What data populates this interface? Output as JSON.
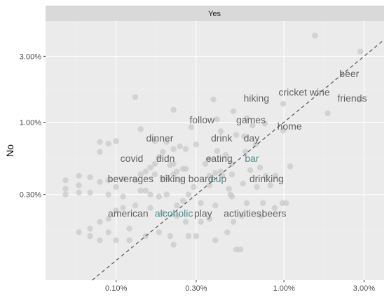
{
  "chart_data": {
    "type": "scatter",
    "facet_label": "Yes",
    "xlabel": "",
    "ylabel": "No",
    "x_scale": "log10",
    "y_scale": "log10",
    "xlim": [
      0.00038,
      0.0395
    ],
    "ylim": [
      0.00072,
      0.054
    ],
    "x_ticks": [
      {
        "value": 0.001,
        "label": "0.10%"
      },
      {
        "value": 0.003,
        "label": "0.30%"
      },
      {
        "value": 0.01,
        "label": "1.00%"
      },
      {
        "value": 0.03,
        "label": "3.00%"
      }
    ],
    "y_ticks": [
      {
        "value": 0.003,
        "label": "0.30%"
      },
      {
        "value": 0.01,
        "label": "1.00%"
      },
      {
        "value": 0.03,
        "label": "3.00%"
      }
    ],
    "reference_line": "y = x",
    "grid": true,
    "point_color": "#c9c9c9",
    "default_word_color": "#636363",
    "highlight_word_color": "#4a8c8c",
    "words": [
      {
        "text": "beer",
        "x": 0.0245,
        "y": 0.0225,
        "highlight": false
      },
      {
        "text": "cricket wine",
        "x": 0.0132,
        "y": 0.0165,
        "highlight": false
      },
      {
        "text": "friends",
        "x": 0.0255,
        "y": 0.015,
        "highlight": false
      },
      {
        "text": "hiking",
        "x": 0.00685,
        "y": 0.015,
        "highlight": false
      },
      {
        "text": "home",
        "x": 0.0108,
        "y": 0.0094,
        "highlight": false
      },
      {
        "text": "follow",
        "x": 0.00325,
        "y": 0.0104,
        "highlight": false
      },
      {
        "text": "games",
        "x": 0.00636,
        "y": 0.0104,
        "highlight": false
      },
      {
        "text": "dinner",
        "x": 0.00182,
        "y": 0.0077,
        "highlight": false
      },
      {
        "text": "drink",
        "x": 0.00425,
        "y": 0.0077,
        "highlight": false
      },
      {
        "text": "day",
        "x": 0.00641,
        "y": 0.0077,
        "highlight": false
      },
      {
        "text": "covid",
        "x": 0.00124,
        "y": 0.0055,
        "highlight": false
      },
      {
        "text": "didn",
        "x": 0.00197,
        "y": 0.0055,
        "highlight": false
      },
      {
        "text": "eating",
        "x": 0.00411,
        "y": 0.0055,
        "highlight": false
      },
      {
        "text": "bar",
        "x": 0.00644,
        "y": 0.0055,
        "highlight": true
      },
      {
        "text": "beverages",
        "x": 0.00122,
        "y": 0.0039,
        "highlight": false
      },
      {
        "text": "biking",
        "x": 0.00218,
        "y": 0.0039,
        "highlight": false
      },
      {
        "text": "board",
        "x": 0.0032,
        "y": 0.0039,
        "highlight": false
      },
      {
        "text": "cup",
        "x": 0.00408,
        "y": 0.0039,
        "highlight": true
      },
      {
        "text": "drinking",
        "x": 0.00788,
        "y": 0.0039,
        "highlight": false
      },
      {
        "text": "american",
        "x": 0.00118,
        "y": 0.0022,
        "highlight": false
      },
      {
        "text": "alcoholic",
        "x": 0.00221,
        "y": 0.0022,
        "highlight": true
      },
      {
        "text": "play",
        "x": 0.0033,
        "y": 0.0022,
        "highlight": false
      },
      {
        "text": "activities",
        "x": 0.00566,
        "y": 0.0022,
        "highlight": false
      },
      {
        "text": "beers",
        "x": 0.00873,
        "y": 0.0022,
        "highlight": false
      }
    ],
    "points": [
      [
        0.0285,
        0.0325
      ],
      [
        0.0153,
        0.0424
      ],
      [
        0.0281,
        0.0146
      ],
      [
        0.0182,
        0.0116
      ],
      [
        0.0099,
        0.0136
      ],
      [
        0.0099,
        0.0087
      ],
      [
        0.0077,
        0.0098
      ],
      [
        0.006,
        0.0107
      ],
      [
        0.0065,
        0.0095
      ],
      [
        0.005,
        0.012
      ],
      [
        0.0038,
        0.0146
      ],
      [
        0.004,
        0.0105
      ],
      [
        0.0042,
        0.0086
      ],
      [
        0.0052,
        0.0081
      ],
      [
        0.0058,
        0.0079
      ],
      [
        0.0068,
        0.0069
      ],
      [
        0.0059,
        0.0061
      ],
      [
        0.0045,
        0.0058
      ],
      [
        0.004,
        0.0062
      ],
      [
        0.0036,
        0.0054
      ],
      [
        0.0049,
        0.005
      ],
      [
        0.0063,
        0.0045
      ],
      [
        0.0072,
        0.0047
      ],
      [
        0.0078,
        0.0041
      ],
      [
        0.0089,
        0.0041
      ],
      [
        0.0109,
        0.0048
      ],
      [
        0.0083,
        0.0035
      ],
      [
        0.0069,
        0.0034
      ],
      [
        0.0057,
        0.0036
      ],
      [
        0.0047,
        0.0033
      ],
      [
        0.0036,
        0.0035
      ],
      [
        0.0029,
        0.0034
      ],
      [
        0.0024,
        0.0038
      ],
      [
        0.0022,
        0.0042
      ],
      [
        0.0021,
        0.0049
      ],
      [
        0.0022,
        0.005
      ],
      [
        0.0018,
        0.0056
      ],
      [
        0.0017,
        0.005
      ],
      [
        0.0016,
        0.0047
      ],
      [
        0.0015,
        0.0044
      ],
      [
        0.0014,
        0.0042
      ],
      [
        0.0013,
        0.0038
      ],
      [
        0.0011,
        0.0039
      ],
      [
        0.001,
        0.0034
      ],
      [
        0.0009,
        0.0038
      ],
      [
        0.0008,
        0.0037
      ],
      [
        0.0007,
        0.004
      ],
      [
        0.0006,
        0.0041
      ],
      [
        0.0005,
        0.0038
      ],
      [
        0.0005,
        0.0033
      ],
      [
        0.0005,
        0.003
      ],
      [
        0.0006,
        0.0031
      ],
      [
        0.0007,
        0.0031
      ],
      [
        0.0009,
        0.003
      ],
      [
        0.0011,
        0.0029
      ],
      [
        0.0014,
        0.0032
      ],
      [
        0.0015,
        0.0032
      ],
      [
        0.0016,
        0.003
      ],
      [
        0.0018,
        0.0029
      ],
      [
        0.002,
        0.003
      ],
      [
        0.0023,
        0.0025
      ],
      [
        0.0025,
        0.0027
      ],
      [
        0.0032,
        0.0026
      ],
      [
        0.0039,
        0.0025
      ],
      [
        0.0049,
        0.0029
      ],
      [
        0.006,
        0.0026
      ],
      [
        0.0075,
        0.0026
      ],
      [
        0.0088,
        0.0024
      ],
      [
        0.0098,
        0.0026
      ],
      [
        0.0103,
        0.0026
      ],
      [
        0.0073,
        0.0021
      ],
      [
        0.0056,
        0.0021
      ],
      [
        0.005,
        0.0019
      ],
      [
        0.0036,
        0.002
      ],
      [
        0.0032,
        0.0019
      ],
      [
        0.0026,
        0.0019
      ],
      [
        0.0023,
        0.0021
      ],
      [
        0.0019,
        0.0022
      ],
      [
        0.0016,
        0.0024
      ],
      [
        0.0013,
        0.0025
      ],
      [
        0.0011,
        0.0024
      ],
      [
        0.001,
        0.0023
      ],
      [
        0.0009,
        0.002
      ],
      [
        0.0008,
        0.0019
      ],
      [
        0.0007,
        0.0017
      ],
      [
        0.0007,
        0.0015
      ],
      [
        0.0008,
        0.0014
      ],
      [
        0.001,
        0.0014
      ],
      [
        0.0012,
        0.0014
      ],
      [
        0.0015,
        0.0015
      ],
      [
        0.0018,
        0.0016
      ],
      [
        0.0021,
        0.0015
      ],
      [
        0.0022,
        0.0013
      ],
      [
        0.0027,
        0.0015
      ],
      [
        0.0046,
        0.0016
      ],
      [
        0.0052,
        0.0012
      ],
      [
        0.0055,
        0.0012
      ],
      [
        0.0039,
        0.0014
      ],
      [
        0.003,
        0.0015
      ],
      [
        0.0012,
        0.0017
      ],
      [
        0.0009,
        0.0016
      ],
      [
        0.0006,
        0.0016
      ],
      [
        0.0008,
        0.0061
      ],
      [
        0.0008,
        0.0072
      ],
      [
        0.0009,
        0.007
      ],
      [
        0.001,
        0.0073
      ],
      [
        0.0014,
        0.0089
      ],
      [
        0.0013,
        0.0152
      ],
      [
        0.0019,
        0.0061
      ],
      [
        0.002,
        0.0072
      ],
      [
        0.0022,
        0.0064
      ],
      [
        0.0024,
        0.0067
      ],
      [
        0.0026,
        0.0064
      ],
      [
        0.0022,
        0.0123
      ],
      [
        0.0017,
        0.0073
      ],
      [
        0.0028,
        0.0092
      ],
      [
        0.003,
        0.0069
      ],
      [
        0.0026,
        0.0046
      ],
      [
        0.0023,
        0.0044
      ],
      [
        0.002,
        0.004
      ],
      [
        0.0019,
        0.0039
      ],
      [
        0.0017,
        0.0042
      ],
      [
        0.0042,
        0.0044
      ],
      [
        0.0043,
        0.0041
      ],
      [
        0.0036,
        0.0041
      ],
      [
        0.0034,
        0.005
      ],
      [
        0.0027,
        0.003
      ],
      [
        0.0025,
        0.0046
      ],
      [
        0.0049,
        0.0042
      ],
      [
        0.0048,
        0.003
      ],
      [
        0.0039,
        0.0043
      ],
      [
        0.0006,
        0.0035
      ]
    ]
  }
}
